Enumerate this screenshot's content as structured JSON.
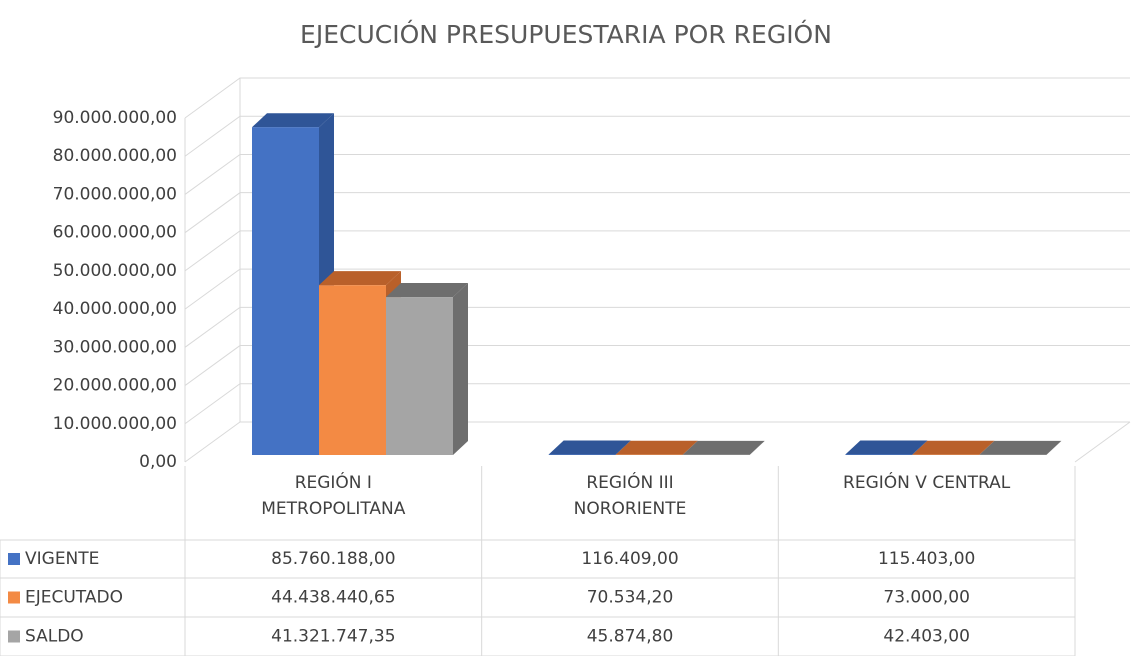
{
  "chart_data": {
    "type": "bar3d",
    "title": "EJECUCIÓN PRESUPUESTARIA POR REGIÓN",
    "categories": [
      "REGIÓN I METROPOLITANA",
      "REGIÓN III NORORIENTE",
      "REGIÓN V CENTRAL"
    ],
    "series": [
      {
        "name": "VIGENTE",
        "color": "#4472c4",
        "side": "#2f5597",
        "values": [
          85760188,
          116409,
          115403
        ],
        "value_labels": [
          "85.760.188,00",
          "116.409,00",
          "115.403,00"
        ]
      },
      {
        "name": "EJECUTADO",
        "color": "#f38a44",
        "side": "#b9602a",
        "values": [
          44438440.65,
          70534.2,
          73000
        ],
        "value_labels": [
          "44.438.440,65",
          "70.534,20",
          "73.000,00"
        ]
      },
      {
        "name": "SALDO",
        "color": "#a5a5a5",
        "side": "#6e6e6e",
        "values": [
          41321747.35,
          45874.8,
          42403
        ],
        "value_labels": [
          "41.321.747,35",
          "45.874,80",
          "42.403,00"
        ]
      }
    ],
    "ylim": [
      0,
      90000000
    ],
    "yticks": [
      {
        "value": 0,
        "label": "0,00"
      },
      {
        "value": 10000000,
        "label": "10.000.000,00"
      },
      {
        "value": 20000000,
        "label": "20.000.000,00"
      },
      {
        "value": 30000000,
        "label": "30.000.000,00"
      },
      {
        "value": 40000000,
        "label": "40.000.000,00"
      },
      {
        "value": 50000000,
        "label": "50.000.000,00"
      },
      {
        "value": 60000000,
        "label": "60.000.000,00"
      },
      {
        "value": 70000000,
        "label": "70.000.000,00"
      },
      {
        "value": 80000000,
        "label": "80.000.000,00"
      },
      {
        "value": 90000000,
        "label": "90.000.000,00"
      }
    ],
    "grid": true
  }
}
